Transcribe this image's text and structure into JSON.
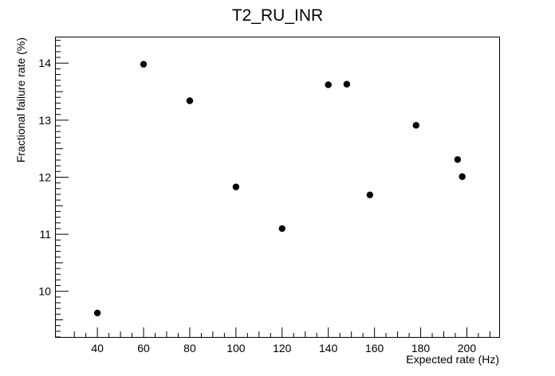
{
  "chart_data": {
    "type": "scatter",
    "title": "T2_RU_INR",
    "xlabel": "Expected rate (Hz)",
    "ylabel": "Fractional failure rate (%)",
    "xlim": [
      22,
      214
    ],
    "ylim": [
      9.2,
      14.45
    ],
    "x_ticks": [
      40,
      60,
      80,
      100,
      120,
      140,
      160,
      180,
      200
    ],
    "y_ticks": [
      10,
      11,
      12,
      13,
      14
    ],
    "x_tick_labels": [
      "40",
      "60",
      "80",
      "100",
      "120",
      "140",
      "160",
      "180",
      "200"
    ],
    "y_tick_labels": [
      "10",
      "11",
      "12",
      "13",
      "14"
    ],
    "grid": false,
    "marker_color": "#000000",
    "points": [
      {
        "x": 40,
        "y": 9.62
      },
      {
        "x": 60,
        "y": 13.98
      },
      {
        "x": 80,
        "y": 13.34
      },
      {
        "x": 100,
        "y": 11.83
      },
      {
        "x": 120,
        "y": 11.1
      },
      {
        "x": 140,
        "y": 13.62
      },
      {
        "x": 148,
        "y": 13.63
      },
      {
        "x": 158,
        "y": 11.69
      },
      {
        "x": 178,
        "y": 12.91
      },
      {
        "x": 196,
        "y": 12.31
      },
      {
        "x": 198,
        "y": 12.01
      }
    ]
  }
}
